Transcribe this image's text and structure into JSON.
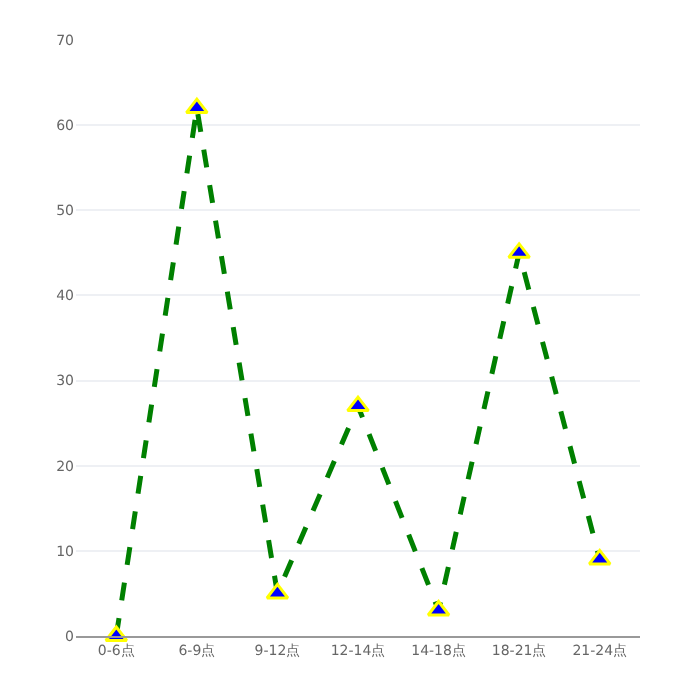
{
  "chart_data": {
    "type": "line",
    "categories": [
      "0-6点",
      "6-9点",
      "9-12点",
      "12-14点",
      "14-18点",
      "18-21点",
      "21-24点"
    ],
    "series": [
      {
        "color": "#008000",
        "values": [
          0,
          62,
          5,
          27,
          3,
          45,
          9
        ]
      }
    ],
    "ylim": [
      0,
      70
    ],
    "yticks": [
      0,
      10,
      20,
      30,
      40,
      50,
      60,
      70
    ],
    "grid": "y",
    "legend": false,
    "marker": "triangle",
    "line_style": "dashed"
  }
}
